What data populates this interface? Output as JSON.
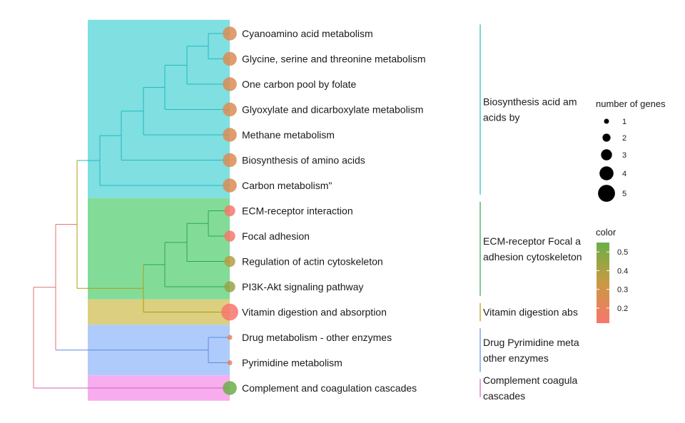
{
  "chart_data": {
    "type": "treeplot",
    "title": "",
    "leaves": [
      {
        "name": "Cyanoamino acid metabolism",
        "genes": 4,
        "color_value": 0.25,
        "cluster": 0
      },
      {
        "name": "Glycine, serine and threonine metabolism",
        "genes": 4,
        "color_value": 0.25,
        "cluster": 0
      },
      {
        "name": "One carbon pool by folate",
        "genes": 4,
        "color_value": 0.25,
        "cluster": 0
      },
      {
        "name": "Glyoxylate and dicarboxylate metabolism",
        "genes": 4,
        "color_value": 0.25,
        "cluster": 0
      },
      {
        "name": "Methane metabolism",
        "genes": 4,
        "color_value": 0.25,
        "cluster": 0
      },
      {
        "name": "Biosynthesis of amino acids",
        "genes": 4,
        "color_value": 0.25,
        "cluster": 0
      },
      {
        "name": "Carbon metabolism\"",
        "genes": 4,
        "color_value": 0.25,
        "cluster": 0
      },
      {
        "name": "ECM-receptor interaction",
        "genes": 3,
        "color_value": 0.13,
        "cluster": 1
      },
      {
        "name": "Focal adhesion",
        "genes": 3,
        "color_value": 0.13,
        "cluster": 1
      },
      {
        "name": "Regulation of actin cytoskeleton",
        "genes": 3,
        "color_value": 0.38,
        "cluster": 1
      },
      {
        "name": "PI3K-Akt signaling pathway",
        "genes": 3,
        "color_value": 0.45,
        "cluster": 1
      },
      {
        "name": "Vitamin digestion and absorption",
        "genes": 5,
        "color_value": 0.12,
        "cluster": 2
      },
      {
        "name": "Drug metabolism - other enzymes",
        "genes": 1,
        "color_value": 0.2,
        "cluster": 3
      },
      {
        "name": "Pyrimidine metabolism",
        "genes": 1,
        "color_value": 0.2,
        "cluster": 3
      },
      {
        "name": "Complement and coagulation cascades",
        "genes": 4,
        "color_value": 0.55,
        "cluster": 4
      }
    ],
    "clusters": [
      {
        "label_lines": [
          "Biosynthesis acid am",
          "acids by"
        ],
        "fill": "#7fdfe1",
        "line": "#25b9be"
      },
      {
        "label_lines": [
          "ECM-receptor Focal a",
          "adhesion cytoskeleton"
        ],
        "fill": "#82dc98",
        "line": "#2aa84a"
      },
      {
        "label_lines": [
          "Vitamin digestion abs"
        ],
        "fill": "#dccf80",
        "line": "#b59a10"
      },
      {
        "label_lines": [
          "Drug Pyrimidine meta",
          "other enzymes"
        ],
        "fill": "#afcbfb",
        "line": "#5b8de0"
      },
      {
        "label_lines": [
          "Complement coagula",
          "cascades"
        ],
        "fill": "#f7adee",
        "line": "#d45dc6"
      }
    ],
    "tree": {
      "branch_color_root": "#e07070",
      "branch_color_mid": "#5b8de0",
      "branch_color_ecmvit": "#b59a10"
    },
    "size_legend": {
      "title": "number of genes",
      "values": [
        1,
        2,
        3,
        4,
        5
      ]
    },
    "color_legend": {
      "title": "color",
      "range": [
        0.12,
        0.55
      ],
      "ticks": [
        0.5,
        0.4,
        0.3,
        0.2
      ],
      "tick_labels": [
        "0.5",
        "0.4",
        "0.3",
        "0.2"
      ],
      "low_color": "#f8766d",
      "mid_color": "#c99a42",
      "high_color": "#6aaf48"
    }
  }
}
